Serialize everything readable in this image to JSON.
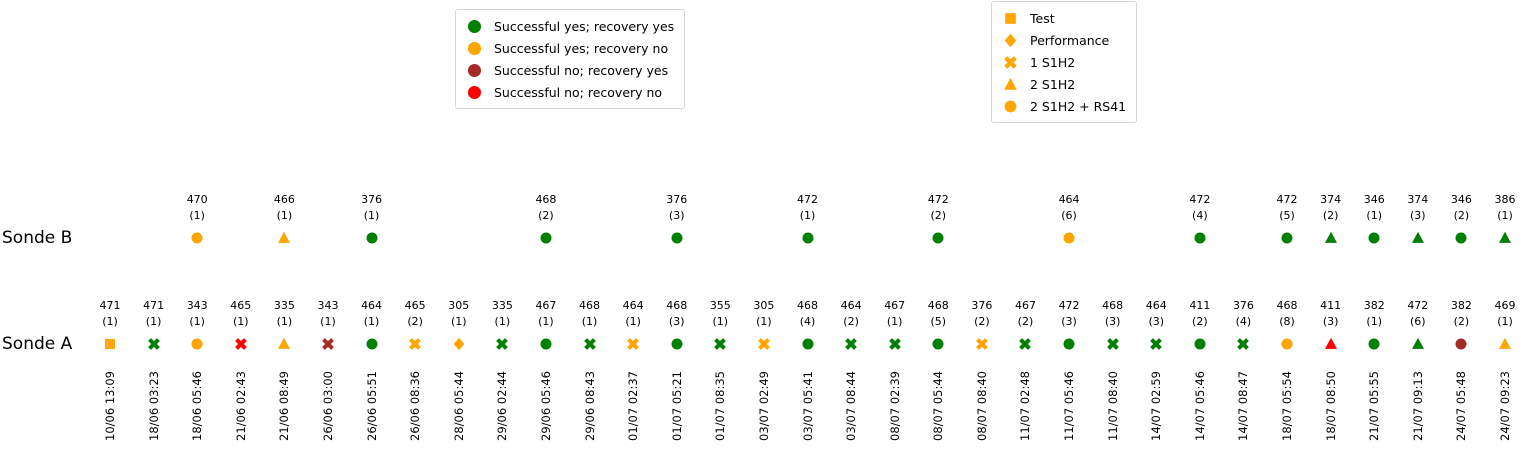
{
  "legends": {
    "status": {
      "items": [
        {
          "label": "Successful yes; recovery yes",
          "color": "#008000"
        },
        {
          "label": "Successful yes; recovery no",
          "color": "#FFA500"
        },
        {
          "label": "Successful no; recovery yes",
          "color": "#A52A2A"
        },
        {
          "label": "Successful no; recovery no",
          "color": "#FF0000"
        }
      ]
    },
    "marker_type": {
      "color": "#FFA500",
      "items": [
        {
          "label": "Test",
          "shape": "square"
        },
        {
          "label": "Performance",
          "shape": "diamond"
        },
        {
          "label": "1 S1H2",
          "shape": "x"
        },
        {
          "label": "2 S1H2",
          "shape": "triangle"
        },
        {
          "label": "2 S1H2 + RS41",
          "shape": "circle"
        }
      ]
    }
  },
  "chart_data": {
    "type": "scatter",
    "colors": {
      "green": "#008000",
      "orange": "#FFA500",
      "brown": "#A52A2A",
      "red": "#FF0000"
    },
    "color_meanings": {
      "green": "Successful yes; recovery yes",
      "orange": "Successful yes; recovery no",
      "brown": "Successful no; recovery yes",
      "red": "Successful no; recovery no"
    },
    "marker_meanings": {
      "square": "Test",
      "diamond": "Performance",
      "x": "1 S1H2",
      "triangle": "2 S1H2",
      "circle": "2 S1H2 + RS41"
    },
    "x_tick_labels": [
      "10/06 13:09",
      "18/06 03:23",
      "18/06 05:46",
      "21/06 02:43",
      "21/06 08:49",
      "26/06 03:00",
      "26/06 05:51",
      "26/06 08:36",
      "28/06 05:44",
      "29/06 02:44",
      "29/06 05:46",
      "29/06 08:43",
      "01/07 02:37",
      "01/07 05:21",
      "01/07 08:35",
      "03/07 02:49",
      "03/07 05:41",
      "03/07 08:44",
      "08/07 02:39",
      "08/07 05:44",
      "08/07 08:40",
      "11/07 02:48",
      "11/07 05:46",
      "11/07 08:40",
      "14/07 02:59",
      "14/07 05:46",
      "14/07 08:47",
      "18/07 05:54",
      "18/07 08:50",
      "21/07 05:55",
      "21/07 09:13",
      "24/07 05:48",
      "24/07 09:23"
    ],
    "series": [
      {
        "name": "Sonde B",
        "points": [
          {
            "i": 2,
            "label": "470",
            "count": "(1)",
            "shape": "circle",
            "color": "orange"
          },
          {
            "i": 4,
            "label": "466",
            "count": "(1)",
            "shape": "triangle",
            "color": "orange"
          },
          {
            "i": 6,
            "label": "376",
            "count": "(1)",
            "shape": "circle",
            "color": "green"
          },
          {
            "i": 10,
            "label": "468",
            "count": "(2)",
            "shape": "circle",
            "color": "green"
          },
          {
            "i": 13,
            "label": "376",
            "count": "(3)",
            "shape": "circle",
            "color": "green"
          },
          {
            "i": 16,
            "label": "472",
            "count": "(1)",
            "shape": "circle",
            "color": "green"
          },
          {
            "i": 19,
            "label": "472",
            "count": "(2)",
            "shape": "circle",
            "color": "green"
          },
          {
            "i": 22,
            "label": "464",
            "count": "(6)",
            "shape": "circle",
            "color": "orange"
          },
          {
            "i": 25,
            "label": "472",
            "count": "(4)",
            "shape": "circle",
            "color": "green"
          },
          {
            "i": 27,
            "label": "472",
            "count": "(5)",
            "shape": "circle",
            "color": "green"
          },
          {
            "i": 28,
            "label": "374",
            "count": "(2)",
            "shape": "triangle",
            "color": "green"
          },
          {
            "i": 29,
            "label": "346",
            "count": "(1)",
            "shape": "circle",
            "color": "green"
          },
          {
            "i": 30,
            "label": "374",
            "count": "(3)",
            "shape": "triangle",
            "color": "green"
          },
          {
            "i": 31,
            "label": "346",
            "count": "(2)",
            "shape": "circle",
            "color": "green"
          },
          {
            "i": 32,
            "label": "386",
            "count": "(1)",
            "shape": "triangle",
            "color": "green"
          }
        ]
      },
      {
        "name": "Sonde A",
        "points": [
          {
            "i": 0,
            "label": "471",
            "count": "(1)",
            "shape": "square",
            "color": "orange"
          },
          {
            "i": 1,
            "label": "471",
            "count": "(1)",
            "shape": "x",
            "color": "green"
          },
          {
            "i": 2,
            "label": "343",
            "count": "(1)",
            "shape": "circle",
            "color": "orange"
          },
          {
            "i": 3,
            "label": "465",
            "count": "(1)",
            "shape": "x",
            "color": "red"
          },
          {
            "i": 4,
            "label": "335",
            "count": "(1)",
            "shape": "triangle",
            "color": "orange"
          },
          {
            "i": 5,
            "label": "343",
            "count": "(1)",
            "shape": "x",
            "color": "brown"
          },
          {
            "i": 6,
            "label": "464",
            "count": "(1)",
            "shape": "circle",
            "color": "green"
          },
          {
            "i": 7,
            "label": "465",
            "count": "(2)",
            "shape": "x",
            "color": "orange"
          },
          {
            "i": 8,
            "label": "305",
            "count": "(1)",
            "shape": "diamond",
            "color": "orange"
          },
          {
            "i": 9,
            "label": "335",
            "count": "(1)",
            "shape": "x",
            "color": "green"
          },
          {
            "i": 10,
            "label": "467",
            "count": "(1)",
            "shape": "circle",
            "color": "green"
          },
          {
            "i": 11,
            "label": "468",
            "count": "(1)",
            "shape": "x",
            "color": "green"
          },
          {
            "i": 12,
            "label": "464",
            "count": "(1)",
            "shape": "x",
            "color": "orange"
          },
          {
            "i": 13,
            "label": "468",
            "count": "(3)",
            "shape": "circle",
            "color": "green"
          },
          {
            "i": 14,
            "label": "355",
            "count": "(1)",
            "shape": "x",
            "color": "green"
          },
          {
            "i": 15,
            "label": "305",
            "count": "(1)",
            "shape": "x",
            "color": "orange"
          },
          {
            "i": 16,
            "label": "468",
            "count": "(4)",
            "shape": "circle",
            "color": "green"
          },
          {
            "i": 17,
            "label": "464",
            "count": "(2)",
            "shape": "x",
            "color": "green"
          },
          {
            "i": 18,
            "label": "467",
            "count": "(1)",
            "shape": "x",
            "color": "green"
          },
          {
            "i": 19,
            "label": "468",
            "count": "(5)",
            "shape": "circle",
            "color": "green"
          },
          {
            "i": 20,
            "label": "376",
            "count": "(2)",
            "shape": "x",
            "color": "orange"
          },
          {
            "i": 21,
            "label": "467",
            "count": "(2)",
            "shape": "x",
            "color": "green"
          },
          {
            "i": 22,
            "label": "472",
            "count": "(3)",
            "shape": "circle",
            "color": "green"
          },
          {
            "i": 23,
            "label": "468",
            "count": "(3)",
            "shape": "x",
            "color": "green"
          },
          {
            "i": 24,
            "label": "464",
            "count": "(3)",
            "shape": "x",
            "color": "green"
          },
          {
            "i": 25,
            "label": "411",
            "count": "(2)",
            "shape": "circle",
            "color": "green"
          },
          {
            "i": 26,
            "label": "376",
            "count": "(4)",
            "shape": "x",
            "color": "green"
          },
          {
            "i": 27,
            "label": "468",
            "count": "(8)",
            "shape": "circle",
            "color": "orange"
          },
          {
            "i": 28,
            "label": "411",
            "count": "(3)",
            "shape": "triangle",
            "color": "red"
          },
          {
            "i": 29,
            "label": "382",
            "count": "(1)",
            "shape": "circle",
            "color": "green"
          },
          {
            "i": 30,
            "label": "472",
            "count": "(6)",
            "shape": "triangle",
            "color": "green"
          },
          {
            "i": 31,
            "label": "382",
            "count": "(2)",
            "shape": "circle",
            "color": "brown"
          },
          {
            "i": 32,
            "label": "469",
            "count": "(1)",
            "shape": "triangle",
            "color": "orange"
          }
        ]
      }
    ]
  }
}
